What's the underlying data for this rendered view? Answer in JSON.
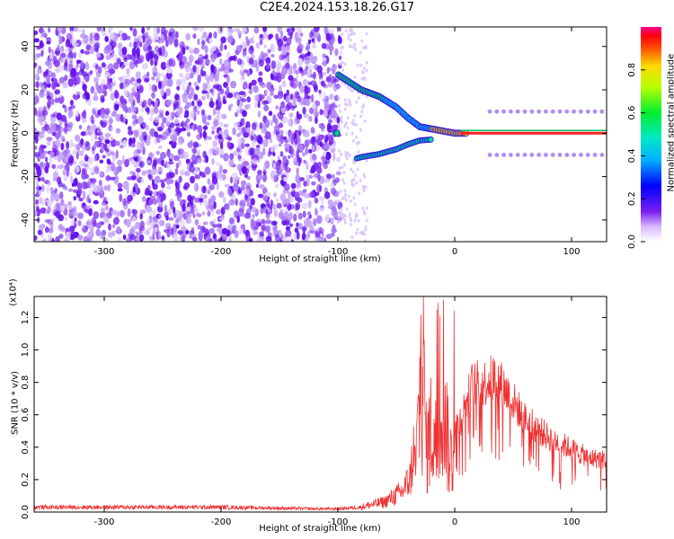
{
  "title": "C2E4.2024.153.18.26.G17",
  "chart_data": [
    {
      "type": "heatmap",
      "xlabel": "Height of straight line (km)",
      "ylabel": "Frequency (Hz)",
      "xlim": [
        -360,
        130
      ],
      "ylim": [
        -50,
        49
      ],
      "xticks": [
        -300,
        -200,
        -100,
        0,
        100
      ],
      "yticks": [
        40,
        20,
        0,
        -20,
        -40
      ],
      "signal_track": [
        {
          "x": -100,
          "y": 27
        },
        {
          "x": -80,
          "y": 20
        },
        {
          "x": -65,
          "y": 17
        },
        {
          "x": -50,
          "y": 12
        },
        {
          "x": -40,
          "y": 7
        },
        {
          "x": -30,
          "y": 3
        },
        {
          "x": -10,
          "y": 1
        },
        {
          "x": 0,
          "y": 0
        },
        {
          "x": 130,
          "y": 0
        }
      ],
      "colorbar": {
        "label": "Normalized spectral amplitude",
        "ticks": [
          "0.0",
          "0.2",
          "0.4",
          "0.6",
          "0.8"
        ],
        "range": [
          0,
          1
        ]
      }
    },
    {
      "type": "line",
      "xlabel": "Height of straight line (km)",
      "ylabel": "SNR (10 * v/v)",
      "multiplier_label": "(x10⁴)",
      "xlim": [
        -360,
        130
      ],
      "ylim": [
        0,
        1.33
      ],
      "xticks": [
        -300,
        -200,
        -100,
        0,
        100
      ],
      "yticks": [
        "0.0",
        "0.2",
        "0.4",
        "0.6",
        "0.8",
        "1.0",
        "1.2"
      ],
      "color": "#ee3333",
      "series": [
        {
          "values": [
            {
              "x": -360,
              "y": 0.03
            },
            {
              "x": -300,
              "y": 0.03
            },
            {
              "x": -200,
              "y": 0.03
            },
            {
              "x": -120,
              "y": 0.02
            },
            {
              "x": -100,
              "y": 0.02
            },
            {
              "x": -80,
              "y": 0.03
            },
            {
              "x": -60,
              "y": 0.06
            },
            {
              "x": -45,
              "y": 0.12
            },
            {
              "x": -38,
              "y": 0.2
            },
            {
              "x": -33,
              "y": 0.5
            },
            {
              "x": -30,
              "y": 1.1
            },
            {
              "x": -27,
              "y": 1.3
            },
            {
              "x": -24,
              "y": 0.6
            },
            {
              "x": -20,
              "y": 0.8
            },
            {
              "x": -15,
              "y": 0.6
            },
            {
              "x": -10,
              "y": 1.3
            },
            {
              "x": -5,
              "y": 0.5
            },
            {
              "x": 5,
              "y": 0.62
            },
            {
              "x": 15,
              "y": 0.85
            },
            {
              "x": 25,
              "y": 0.86
            },
            {
              "x": 35,
              "y": 0.9
            },
            {
              "x": 45,
              "y": 0.8
            },
            {
              "x": 60,
              "y": 0.62
            },
            {
              "x": 80,
              "y": 0.5
            },
            {
              "x": 100,
              "y": 0.42
            },
            {
              "x": 115,
              "y": 0.36
            },
            {
              "x": 130,
              "y": 0.35
            }
          ]
        }
      ]
    }
  ]
}
